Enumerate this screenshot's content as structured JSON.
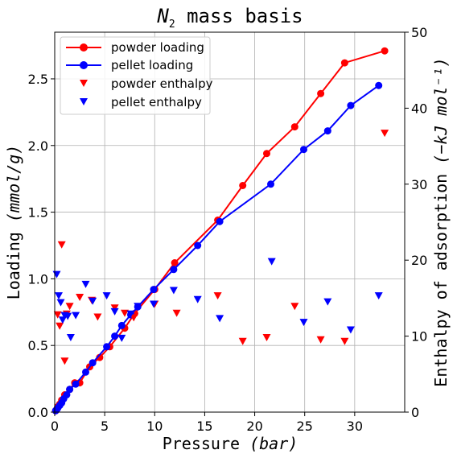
{
  "chart_data": {
    "type": "line",
    "title_main": "N",
    "title_sub": "2",
    "title_rest": " mass basis",
    "xlabel_text": "Pressure ",
    "xlabel_unit": "(bar)",
    "ylabel_text": "Loading ",
    "ylabel_unit": "(mmol/g)",
    "y2label_text": "Enthalpy of adsorption ",
    "y2label_unit": "(−kJ mol⁻¹)",
    "xlim": [
      0,
      35
    ],
    "ylim": [
      0,
      2.85
    ],
    "y2lim": [
      0,
      50
    ],
    "grid": true,
    "legend_position": "top-left",
    "x_ticks": [
      "0",
      "5",
      "10",
      "15",
      "20",
      "25",
      "30"
    ],
    "y_ticks": [
      "0.0",
      "0.5",
      "1.0",
      "1.5",
      "2.0",
      "2.5"
    ],
    "y2_ticks": [
      "0",
      "10",
      "20",
      "30",
      "40",
      "50"
    ],
    "colors": {
      "powder": "#ff0000",
      "pellet": "#0000ff"
    },
    "series": [
      {
        "name": "powder loading",
        "kind": "line-marker",
        "axis": "left",
        "color": "#ff0000",
        "x": [
          0.1,
          0.2,
          0.3,
          0.5,
          0.7,
          1.0,
          1.5,
          2.0,
          2.5,
          3.5,
          4.5,
          5.5,
          7.0,
          8.0,
          10.0,
          12.0,
          16.3,
          18.8,
          21.2,
          24.0,
          26.6,
          29.0,
          33.0
        ],
        "y": [
          0.01,
          0.02,
          0.04,
          0.06,
          0.09,
          0.13,
          0.17,
          0.22,
          0.22,
          0.34,
          0.41,
          0.49,
          0.63,
          0.74,
          0.92,
          1.12,
          1.44,
          1.7,
          1.94,
          2.14,
          2.39,
          2.62,
          2.71
        ]
      },
      {
        "name": "pellet loading",
        "kind": "line-marker",
        "axis": "left",
        "color": "#0000ff",
        "x": [
          0.1,
          0.2,
          0.3,
          0.5,
          0.7,
          0.9,
          1.2,
          1.5,
          2.1,
          3.1,
          3.8,
          5.2,
          6.0,
          6.7,
          7.6,
          8.3,
          9.9,
          11.9,
          14.3,
          16.5,
          21.6,
          24.9,
          27.3,
          29.6,
          32.4
        ],
        "y": [
          0.01,
          0.02,
          0.03,
          0.05,
          0.07,
          0.1,
          0.13,
          0.17,
          0.21,
          0.3,
          0.37,
          0.49,
          0.57,
          0.65,
          0.73,
          0.79,
          0.92,
          1.07,
          1.25,
          1.43,
          1.71,
          1.97,
          2.11,
          2.3,
          2.45
        ]
      },
      {
        "name": "powder enthalpy",
        "kind": "marker",
        "axis": "right",
        "color": "#ff0000",
        "x": [
          0.3,
          0.5,
          0.7,
          1.0,
          1.2,
          1.5,
          2.5,
          3.7,
          4.3,
          6.0,
          7.0,
          7.9,
          10.0,
          12.2,
          16.3,
          18.8,
          21.2,
          24.0,
          26.6,
          29.0,
          33.0
        ],
        "y": [
          12.8,
          11.3,
          22.0,
          6.7,
          12.9,
          13.9,
          15.1,
          14.7,
          12.5,
          13.7,
          13.0,
          12.4,
          14.2,
          13.0,
          15.3,
          9.3,
          9.8,
          13.9,
          9.5,
          9.3,
          36.7
        ]
      },
      {
        "name": "pellet enthalpy",
        "kind": "marker",
        "axis": "right",
        "color": "#0000ff",
        "x": [
          0.2,
          0.4,
          0.6,
          0.8,
          1.0,
          1.3,
          1.6,
          2.1,
          3.1,
          3.8,
          5.2,
          6.0,
          6.7,
          7.6,
          8.3,
          9.9,
          11.9,
          14.3,
          16.5,
          21.7,
          24.9,
          27.3,
          29.6,
          32.4
        ],
        "y": [
          18.1,
          15.3,
          14.4,
          12.1,
          12.7,
          12.6,
          9.8,
          12.7,
          16.8,
          14.6,
          15.3,
          13.2,
          9.7,
          12.9,
          13.9,
          14.2,
          16.0,
          14.8,
          12.3,
          19.8,
          11.8,
          14.5,
          10.8,
          15.3
        ]
      }
    ]
  }
}
